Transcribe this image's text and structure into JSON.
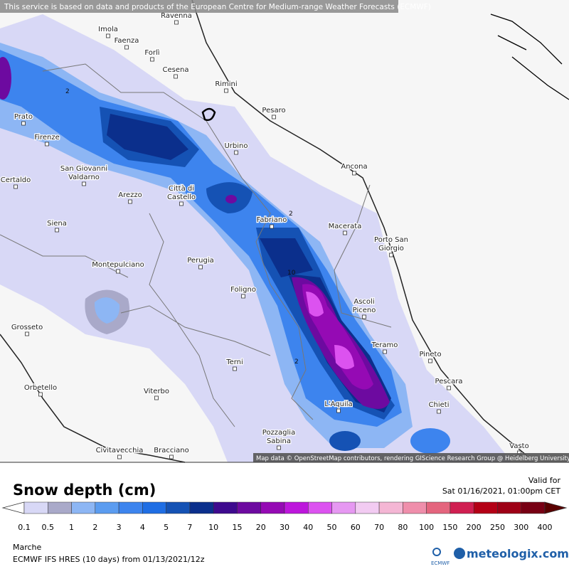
{
  "notice": "This service is based on data and products of the European Centre for Medium-range Weather Forecasts (ECMWF)",
  "attribution": "Map data © OpenStreetMap contributors, rendering GIScience Research Group @ Heidelberg University",
  "cities": [
    [
      "Ravenna"
    ],
    [
      "Imola"
    ],
    [
      "Faenza"
    ],
    [
      "Forlì"
    ],
    [
      "Cesena"
    ],
    [
      "Rimini"
    ],
    [
      "Prato"
    ],
    [
      "Pesaro"
    ],
    [
      "Firenze"
    ],
    [
      "Urbino"
    ],
    [
      "Certaldo"
    ],
    [
      "San Giovanni",
      "Valdarno"
    ],
    [
      "Arezzo"
    ],
    [
      "Città di",
      "Castello"
    ],
    [
      "Ancona"
    ],
    [
      "Siena"
    ],
    [
      "Fabriano"
    ],
    [
      "Macerata"
    ],
    [
      "Porto San",
      "Giorgio"
    ],
    [
      "Montepulciano"
    ],
    [
      "Perugia"
    ],
    [
      "Foligno"
    ],
    [
      "Ascoli",
      "Piceno"
    ],
    [
      "Grosseto"
    ],
    [
      "Teramo"
    ],
    [
      "Pineto"
    ],
    [
      "Terni"
    ],
    [
      "Pescara"
    ],
    [
      "Orbetello"
    ],
    [
      "Viterbo"
    ],
    [
      "L'Aquila"
    ],
    [
      "Chieti"
    ],
    [
      "Pozzaglia",
      "Sabina"
    ],
    [
      "Civitavecchia"
    ],
    [
      "Bracciano"
    ],
    [
      "Vasto"
    ]
  ],
  "contour_labels": [
    "2",
    "2",
    "10",
    "2"
  ],
  "title": "Snow depth (cm)",
  "valid_label": "Valid for",
  "valid_time": "Sat 01/16/2021, 01:00pm CET",
  "legend": {
    "labels": [
      "0.1",
      "0.5",
      "1",
      "2",
      "3",
      "4",
      "5",
      "7",
      "10",
      "15",
      "20",
      "30",
      "40",
      "50",
      "60",
      "70",
      "80",
      "100",
      "150",
      "200",
      "250",
      "300",
      "400"
    ],
    "colors": [
      "#d8d8f6",
      "#a9a9c9",
      "#8db6f4",
      "#5b9cf0",
      "#3d84ee",
      "#1f6ee4",
      "#1552b4",
      "#0b2f8c",
      "#3e0a8e",
      "#6d0aa0",
      "#950ab4",
      "#bd16dc",
      "#dc52f0",
      "#e698f2",
      "#f2cbf2",
      "#f4b6d4",
      "#ef8eab",
      "#e4657e",
      "#d01f51",
      "#b40016",
      "#9e0016",
      "#780014"
    ],
    "low_color": "#ffffff",
    "high_color": "#5a0000"
  },
  "region": "Marche",
  "model": "ECMWF IFS HRES (10 days) from 01/13/2021/12z",
  "ecmwf_logo": "ECMWF",
  "brand": "meteologix.com"
}
